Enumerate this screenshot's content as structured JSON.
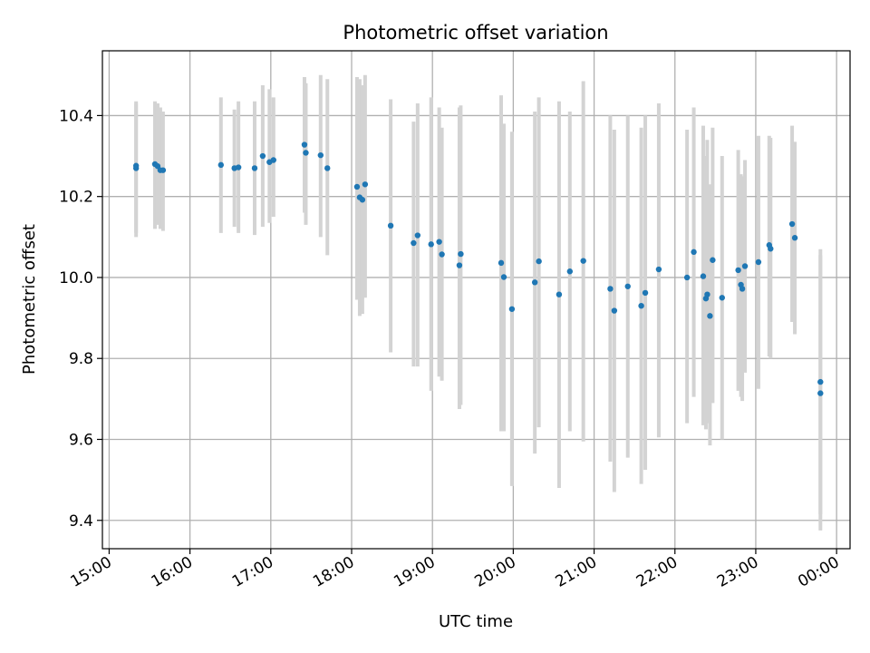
{
  "chart_data": {
    "type": "scatter",
    "title": "Photometric offset variation",
    "xlabel": "UTC time",
    "ylabel": "Photometric offset",
    "grid": true,
    "xlim": [
      "14:55",
      "00:10"
    ],
    "ylim": [
      9.33,
      10.56
    ],
    "x_ticks": [
      "15:00",
      "16:00",
      "17:00",
      "18:00",
      "19:00",
      "20:00",
      "21:00",
      "22:00",
      "23:00",
      "00:00"
    ],
    "y_ticks": [
      "9.4",
      "9.6",
      "9.8",
      "10.0",
      "10.2",
      "10.4"
    ],
    "colors": {
      "point": "#1f77b4",
      "errorbar": "#d3d3d3",
      "grid": "#b0b0b0"
    },
    "points": [
      {
        "x": "15:20",
        "y": 10.27,
        "lo": 10.1,
        "hi": 10.435
      },
      {
        "x": "15:20",
        "y": 10.276,
        "lo": 10.11,
        "hi": 10.43
      },
      {
        "x": "15:34",
        "y": 10.28,
        "lo": 10.12,
        "hi": 10.435
      },
      {
        "x": "15:36",
        "y": 10.275,
        "lo": 10.13,
        "hi": 10.43
      },
      {
        "x": "15:38",
        "y": 10.265,
        "lo": 10.12,
        "hi": 10.42
      },
      {
        "x": "15:40",
        "y": 10.265,
        "lo": 10.115,
        "hi": 10.41
      },
      {
        "x": "16:23",
        "y": 10.278,
        "lo": 10.11,
        "hi": 10.445
      },
      {
        "x": "16:33",
        "y": 10.27,
        "lo": 10.125,
        "hi": 10.415
      },
      {
        "x": "16:36",
        "y": 10.272,
        "lo": 10.11,
        "hi": 10.435
      },
      {
        "x": "16:48",
        "y": 10.27,
        "lo": 10.105,
        "hi": 10.435
      },
      {
        "x": "16:54",
        "y": 10.3,
        "lo": 10.125,
        "hi": 10.475
      },
      {
        "x": "16:59",
        "y": 10.285,
        "lo": 10.135,
        "hi": 10.465
      },
      {
        "x": "17:02",
        "y": 10.29,
        "lo": 10.15,
        "hi": 10.445
      },
      {
        "x": "17:25",
        "y": 10.328,
        "lo": 10.16,
        "hi": 10.495
      },
      {
        "x": "17:26",
        "y": 10.308,
        "lo": 10.13,
        "hi": 10.48
      },
      {
        "x": "17:37",
        "y": 10.302,
        "lo": 10.1,
        "hi": 10.5
      },
      {
        "x": "17:42",
        "y": 10.27,
        "lo": 10.055,
        "hi": 10.49
      },
      {
        "x": "18:04",
        "y": 10.224,
        "lo": 9.945,
        "hi": 10.495
      },
      {
        "x": "18:06",
        "y": 10.198,
        "lo": 9.905,
        "hi": 10.49
      },
      {
        "x": "18:08",
        "y": 10.192,
        "lo": 9.91,
        "hi": 10.475
      },
      {
        "x": "18:10",
        "y": 10.23,
        "lo": 9.95,
        "hi": 10.5
      },
      {
        "x": "18:29",
        "y": 10.128,
        "lo": 9.815,
        "hi": 10.44
      },
      {
        "x": "18:46",
        "y": 10.085,
        "lo": 9.78,
        "hi": 10.385
      },
      {
        "x": "18:49",
        "y": 10.104,
        "lo": 9.78,
        "hi": 10.43
      },
      {
        "x": "18:59",
        "y": 10.082,
        "lo": 9.72,
        "hi": 10.445
      },
      {
        "x": "19:05",
        "y": 10.088,
        "lo": 9.755,
        "hi": 10.42
      },
      {
        "x": "19:07",
        "y": 10.057,
        "lo": 9.745,
        "hi": 10.37
      },
      {
        "x": "19:20",
        "y": 10.03,
        "lo": 9.675,
        "hi": 10.42
      },
      {
        "x": "19:21",
        "y": 10.058,
        "lo": 9.685,
        "hi": 10.425
      },
      {
        "x": "19:51",
        "y": 10.036,
        "lo": 9.62,
        "hi": 10.45
      },
      {
        "x": "19:53",
        "y": 10.001,
        "lo": 9.62,
        "hi": 10.38
      },
      {
        "x": "19:59",
        "y": 9.922,
        "lo": 9.485,
        "hi": 10.36
      },
      {
        "x": "20:16",
        "y": 9.988,
        "lo": 9.565,
        "hi": 10.41
      },
      {
        "x": "20:19",
        "y": 10.04,
        "lo": 9.63,
        "hi": 10.445
      },
      {
        "x": "20:34",
        "y": 9.958,
        "lo": 9.48,
        "hi": 10.435
      },
      {
        "x": "20:42",
        "y": 10.015,
        "lo": 9.62,
        "hi": 10.41
      },
      {
        "x": "20:52",
        "y": 10.041,
        "lo": 9.595,
        "hi": 10.485
      },
      {
        "x": "21:12",
        "y": 9.972,
        "lo": 9.545,
        "hi": 10.4
      },
      {
        "x": "21:15",
        "y": 9.918,
        "lo": 9.47,
        "hi": 10.365
      },
      {
        "x": "21:25",
        "y": 9.978,
        "lo": 9.555,
        "hi": 10.4
      },
      {
        "x": "21:35",
        "y": 9.93,
        "lo": 9.49,
        "hi": 10.37
      },
      {
        "x": "21:38",
        "y": 9.962,
        "lo": 9.525,
        "hi": 10.4
      },
      {
        "x": "21:48",
        "y": 10.02,
        "lo": 9.605,
        "hi": 10.43
      },
      {
        "x": "22:09",
        "y": 10.0,
        "lo": 9.64,
        "hi": 10.365
      },
      {
        "x": "22:14",
        "y": 10.063,
        "lo": 9.705,
        "hi": 10.42
      },
      {
        "x": "22:21",
        "y": 10.003,
        "lo": 9.635,
        "hi": 10.375
      },
      {
        "x": "22:23",
        "y": 9.948,
        "lo": 9.625,
        "hi": 10.3
      },
      {
        "x": "22:24",
        "y": 9.958,
        "lo": 9.64,
        "hi": 10.34
      },
      {
        "x": "22:26",
        "y": 9.905,
        "lo": 9.585,
        "hi": 10.23
      },
      {
        "x": "22:28",
        "y": 10.043,
        "lo": 9.69,
        "hi": 10.37
      },
      {
        "x": "22:35",
        "y": 9.95,
        "lo": 9.6,
        "hi": 10.3
      },
      {
        "x": "22:47",
        "y": 10.018,
        "lo": 9.72,
        "hi": 10.315
      },
      {
        "x": "22:49",
        "y": 9.982,
        "lo": 9.705,
        "hi": 10.255
      },
      {
        "x": "22:50",
        "y": 9.972,
        "lo": 9.695,
        "hi": 10.25
      },
      {
        "x": "22:52",
        "y": 10.028,
        "lo": 9.765,
        "hi": 10.29
      },
      {
        "x": "23:02",
        "y": 10.038,
        "lo": 9.725,
        "hi": 10.35
      },
      {
        "x": "23:10",
        "y": 10.08,
        "lo": 9.805,
        "hi": 10.35
      },
      {
        "x": "23:11",
        "y": 10.071,
        "lo": 9.8,
        "hi": 10.345
      },
      {
        "x": "23:27",
        "y": 10.132,
        "lo": 9.89,
        "hi": 10.375
      },
      {
        "x": "23:29",
        "y": 10.098,
        "lo": 9.86,
        "hi": 10.335
      },
      {
        "x": "23:48",
        "y": 9.742,
        "lo": 9.415,
        "hi": 10.07
      },
      {
        "x": "23:48",
        "y": 9.714,
        "lo": 9.375,
        "hi": 10.055
      }
    ]
  }
}
